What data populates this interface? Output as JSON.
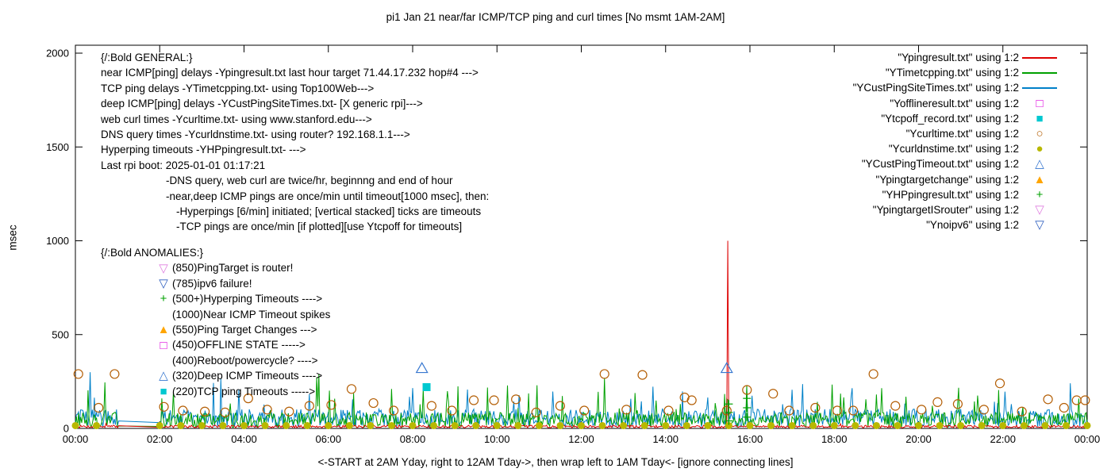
{
  "chart_data": {
    "type": "line",
    "title": "pi1 Jan 21  near/far ICMP/TCP ping and curl times [No msmt 1AM-2AM]",
    "ylabel": "msec",
    "xlabel": "<-START at 2AM Yday, right to 12AM Tday->, then wrap left to 1AM Tday<- [ignore connecting lines]",
    "ylim": [
      0,
      2000
    ],
    "ytick_values": [
      0,
      500,
      1000,
      1500,
      2000
    ],
    "xtick_hours": [
      0,
      2,
      4,
      6,
      8,
      10,
      12,
      14,
      16,
      18,
      20,
      22,
      24
    ],
    "xtick_labels": [
      "00:00",
      "02:00",
      "04:00",
      "06:00",
      "08:00",
      "10:00",
      "12:00",
      "14:00",
      "16:00",
      "18:00",
      "20:00",
      "22:00",
      "00:00"
    ],
    "measurement_gap_hours": [
      1.03,
      2.02
    ],
    "legend": [
      {
        "label": "\"Ypingresult.txt\" using 1:2",
        "marker": "line",
        "color": "#dd0000"
      },
      {
        "label": "\"YTimetcpping.txt\" using 1:2",
        "marker": "line",
        "color": "#00a000"
      },
      {
        "label": "\"YCustPingSiteTimes.txt\" using 1:2",
        "marker": "line",
        "color": "#0080c8"
      },
      {
        "label": "\"Yofflineresult.txt\" using 1:2",
        "marker": "square-open",
        "color": "#dd00dd"
      },
      {
        "label": "\"Ytcpoff_record.txt\" using 1:2",
        "marker": "square-filled",
        "color": "#00c8d0"
      },
      {
        "label": "\"Ycurltime.txt\" using 1:2",
        "marker": "circle-open",
        "color": "#b45f06"
      },
      {
        "label": "\"Ycurldnstime.txt\" using 1:2",
        "marker": "circle-filled",
        "color": "#b8b800"
      },
      {
        "label": "\"YCustPingTimeout.txt\" using 1:2",
        "marker": "triangle-up-open",
        "color": "#3878d0"
      },
      {
        "label": "\"Ypingtargetchange\" using 1:2",
        "marker": "triangle-up-filled",
        "color": "#ffa500"
      },
      {
        "label": "\"YHPpingresult.txt\" using 1:2",
        "marker": "plus",
        "color": "#00a000"
      },
      {
        "label": "\"YpingtargetISrouter\" using 1:2",
        "marker": "triangle-down-open",
        "color": "#e080e0"
      },
      {
        "label": "\"Ynoipv6\" using 1:2",
        "marker": "triangle-down-open",
        "color": "#3060c0"
      }
    ],
    "series": [
      {
        "name": "YCustPingSiteTimes.txt",
        "kind": "noise-line",
        "color": "#0080c8",
        "seed": 29,
        "base": 8,
        "noise": 95,
        "spike_prob": 0.04,
        "spike_scale": 190,
        "spikes": [
          {
            "hour": 0.35,
            "value": 300
          },
          {
            "hour": 3.45,
            "value": 265
          },
          {
            "hour": 8.0,
            "value": 215
          },
          {
            "hour": 23.6,
            "value": 240
          }
        ]
      },
      {
        "name": "YTimetcpping.txt",
        "kind": "noise-line",
        "color": "#00a000",
        "seed": 13,
        "base": 5,
        "noise": 80,
        "spike_prob": 0.06,
        "spike_scale": 200,
        "spikes": [
          {
            "hour": 2.05,
            "value": 160
          },
          {
            "hour": 5.78,
            "value": 290
          },
          {
            "hour": 7.5,
            "value": 210
          },
          {
            "hour": 12.4,
            "value": 195
          },
          {
            "hour": 15.93,
            "value": 230
          },
          {
            "hour": 18.15,
            "value": 185
          },
          {
            "hour": 21.4,
            "value": 175
          }
        ]
      },
      {
        "name": "Ypingresult.txt",
        "kind": "noise-line",
        "color": "#dd0000",
        "seed": 7,
        "base": 3,
        "noise": 14,
        "spike_prob": 0.004,
        "spike_scale": 30,
        "spikes": [
          {
            "hour": 15.47,
            "value": 1000
          }
        ]
      },
      {
        "name": "Ycurltime.txt",
        "kind": "scatter",
        "marker": "circle-open",
        "color": "#b45f06",
        "size": 5.5,
        "points": [
          [
            0.07,
            290
          ],
          [
            0.55,
            110
          ],
          [
            0.93,
            290
          ],
          [
            2.1,
            115
          ],
          [
            2.55,
            95
          ],
          [
            3.07,
            90
          ],
          [
            3.55,
            85
          ],
          [
            4.1,
            160
          ],
          [
            4.55,
            100
          ],
          [
            5.07,
            90
          ],
          [
            5.55,
            120
          ],
          [
            6.07,
            125
          ],
          [
            6.55,
            210
          ],
          [
            7.07,
            135
          ],
          [
            7.55,
            95
          ],
          [
            8.45,
            120
          ],
          [
            8.93,
            95
          ],
          [
            9.45,
            150
          ],
          [
            9.93,
            150
          ],
          [
            10.45,
            155
          ],
          [
            10.93,
            85
          ],
          [
            11.5,
            120
          ],
          [
            12.07,
            95
          ],
          [
            12.55,
            290
          ],
          [
            13.07,
            100
          ],
          [
            13.45,
            285
          ],
          [
            14.07,
            95
          ],
          [
            14.45,
            165
          ],
          [
            14.62,
            150
          ],
          [
            15.45,
            95
          ],
          [
            15.93,
            205
          ],
          [
            16.55,
            185
          ],
          [
            16.93,
            95
          ],
          [
            17.55,
            110
          ],
          [
            18.07,
            95
          ],
          [
            18.45,
            95
          ],
          [
            18.93,
            290
          ],
          [
            19.45,
            120
          ],
          [
            20.07,
            100
          ],
          [
            20.45,
            140
          ],
          [
            20.93,
            130
          ],
          [
            21.55,
            100
          ],
          [
            21.93,
            240
          ],
          [
            22.45,
            90
          ],
          [
            23.07,
            155
          ],
          [
            23.45,
            110
          ],
          [
            23.75,
            150
          ],
          [
            23.95,
            150
          ]
        ]
      },
      {
        "name": "Ycurldnstime.txt",
        "kind": "scatter-periodic",
        "marker": "circle-filled",
        "color": "#b8b800",
        "size": 4.5,
        "start": 0,
        "end": 24,
        "step": 0.5,
        "value": 15,
        "skip_hours": [
          1,
          1.5
        ]
      },
      {
        "name": "YCustPingTimeout.txt",
        "kind": "scatter",
        "marker": "triangle-up-open",
        "color": "#3878d0",
        "size": 7,
        "points": [
          [
            8.22,
            320
          ],
          [
            15.45,
            320
          ]
        ]
      },
      {
        "name": "Ytcpoff_record.txt",
        "kind": "scatter",
        "marker": "square-filled",
        "color": "#00c8d0",
        "size": 5,
        "points": [
          [
            8.33,
            220
          ]
        ]
      },
      {
        "name": "YHPpingresult.txt",
        "kind": "scatter",
        "marker": "plus",
        "color": "#00a000",
        "size": 5,
        "points": [
          [
            15.5,
            40
          ],
          [
            15.5,
            85
          ],
          [
            15.5,
            130
          ],
          [
            15.93,
            60
          ],
          [
            15.93,
            110
          ],
          [
            15.93,
            160
          ]
        ]
      }
    ]
  },
  "general_block": {
    "lines": [
      {
        "text": "{/:Bold GENERAL:}",
        "indent": 0
      },
      {
        "text": "near ICMP[ping] delays -Ypingresult.txt last hour target 71.44.17.232 hop#4 --->",
        "indent": 0
      },
      {
        "text": "TCP ping delays -YTimetcpping.txt- using Top100Web--->",
        "indent": 0
      },
      {
        "text": "deep ICMP[ping] delays -YCustPingSiteTimes.txt- [X generic rpi]--->",
        "indent": 0
      },
      {
        "text": "web curl times -Ycurltime.txt- using www.stanford.edu--->",
        "indent": 0
      },
      {
        "text": "DNS query times -Ycurldnstime.txt- using router? 192.168.1.1--->",
        "indent": 0
      },
      {
        "text": "Hyperping timeouts -YHPpingresult.txt- --->",
        "indent": 0
      },
      {
        "text": "Last rpi boot: 2025-01-01 01:17:21",
        "indent": 0
      },
      {
        "text": "-DNS query, web curl are twice/hr, beginnng and end of hour",
        "indent": 1
      },
      {
        "text": "-near,deep ICMP pings are once/min until timeout[1000 msec], then:",
        "indent": 1
      },
      {
        "text": "-Hyperpings [6/min] initiated; [vertical stacked] ticks are timeouts",
        "indent": 2
      },
      {
        "text": "-TCP pings are once/min [if plotted][use Ytcpoff for timeouts]",
        "indent": 2
      }
    ]
  },
  "anomalies_block": {
    "header": "{/:Bold ANOMALIES:}",
    "rows": [
      {
        "marker": "triangle-down-open",
        "color": "#e080e0",
        "text": "(850)PingTarget is router!"
      },
      {
        "marker": "triangle-down-open",
        "color": "#3060c0",
        "text": "(785)ipv6 failure!"
      },
      {
        "marker": "plus",
        "color": "#00a000",
        "text": "(500+)Hyperping Timeouts ---->"
      },
      {
        "marker": "none",
        "color": "",
        "text": "(1000)Near ICMP Timeout spikes"
      },
      {
        "marker": "triangle-up-filled",
        "color": "#ffa500",
        "text": "(550)Ping Target Changes --->"
      },
      {
        "marker": "square-open",
        "color": "#dd00dd",
        "text": "(450)OFFLINE STATE ----->"
      },
      {
        "marker": "none",
        "color": "",
        "text": "(400)Reboot/powercycle? ---->"
      },
      {
        "marker": "triangle-up-open",
        "color": "#3878d0",
        "text": "(320)Deep ICMP Timeouts ---->"
      },
      {
        "marker": "square-filled",
        "color": "#00c8d0",
        "text": "(220)TCP ping Timeouts ----->"
      }
    ]
  }
}
